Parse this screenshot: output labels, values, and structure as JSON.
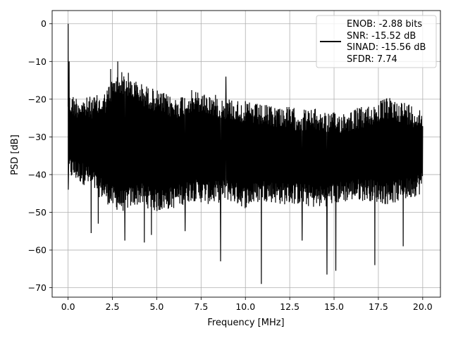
{
  "chart_data": {
    "type": "line",
    "title": "",
    "xlabel": "Frequency [MHz]",
    "ylabel": "PSD [dB]",
    "xlim": [
      -0.9,
      21.0
    ],
    "ylim": [
      -72.5,
      3.5
    ],
    "xticks": [
      0.0,
      2.5,
      5.0,
      7.5,
      10.0,
      12.5,
      15.0,
      17.5,
      20.0
    ],
    "xtick_labels": [
      "0.0",
      "2.5",
      "5.0",
      "7.5",
      "10.0",
      "12.5",
      "15.0",
      "17.5",
      "20.0"
    ],
    "yticks": [
      0,
      -10,
      -20,
      -30,
      -40,
      -50,
      -60,
      -70
    ],
    "ytick_labels": [
      "0",
      "−10",
      "−20",
      "−30",
      "−40",
      "−50",
      "−60",
      "−70"
    ],
    "grid": true,
    "legend_position": "top-right",
    "legend_lines": [
      "ENOB: -2.88 bits",
      "SNR: -15.52 dB",
      "SINAD: -15.56 dB",
      "SFDR: 7.74"
    ],
    "series": [
      {
        "color": "#000000",
        "description": "noise floor spectrum: x 0 to 20 MHz, upper envelope mostly -17..-25 dB, lower envelope around -40..-50 dB",
        "envelope_x": [
          0.0,
          1.0,
          2.0,
          2.5,
          3.0,
          4.0,
          5.0,
          6.0,
          7.0,
          8.0,
          9.0,
          10.0,
          11.0,
          12.0,
          13.0,
          14.0,
          15.0,
          16.0,
          17.0,
          18.0,
          19.0,
          20.0
        ],
        "envelope_upper": [
          -17,
          -18,
          -17,
          -13,
          -11,
          -14,
          -16,
          -18,
          -16,
          -17,
          -18,
          -19,
          -20,
          -20,
          -21,
          -21,
          -22,
          -21,
          -20,
          -18,
          -19,
          -21
        ],
        "envelope_lower": [
          -44,
          -46,
          -50,
          -52,
          -53,
          -51,
          -53,
          -52,
          -50,
          -51,
          -50,
          -52,
          -50,
          -51,
          -51,
          -52,
          -51,
          -50,
          -50,
          -51,
          -50,
          -48
        ],
        "peaks": [
          {
            "x": 0.0,
            "y": 0.0
          },
          {
            "x": 0.06,
            "y": -10.0
          },
          {
            "x": 2.4,
            "y": -12.0
          },
          {
            "x": 2.8,
            "y": -10.0
          },
          {
            "x": 3.4,
            "y": -13.0
          },
          {
            "x": 8.9,
            "y": -14.0
          }
        ],
        "dips": [
          {
            "x": 1.3,
            "y": -55.5
          },
          {
            "x": 1.7,
            "y": -53.0
          },
          {
            "x": 3.2,
            "y": -57.5
          },
          {
            "x": 4.3,
            "y": -58.0
          },
          {
            "x": 4.7,
            "y": -56.0
          },
          {
            "x": 6.6,
            "y": -55.0
          },
          {
            "x": 8.6,
            "y": -63.0
          },
          {
            "x": 10.9,
            "y": -69.0
          },
          {
            "x": 13.2,
            "y": -57.5
          },
          {
            "x": 14.6,
            "y": -66.5
          },
          {
            "x": 15.1,
            "y": -65.5
          },
          {
            "x": 17.3,
            "y": -64.0
          },
          {
            "x": 18.9,
            "y": -59.0
          }
        ]
      }
    ]
  }
}
